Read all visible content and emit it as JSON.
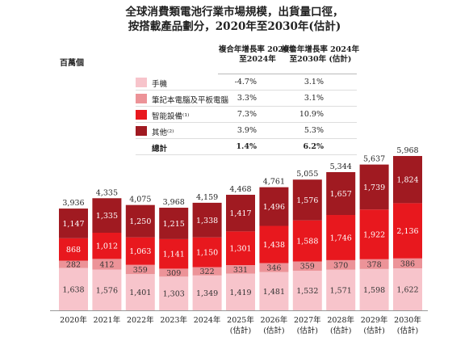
{
  "chart_data": {
    "type": "bar",
    "stacked": true,
    "title": "全球消費類電池行業市場規模，出貨量口徑，",
    "subtitle": "按搭載產品劃分，2020年至2030年(估計)",
    "unit_label": "百萬個",
    "categories": [
      "2020年",
      "2021年",
      "2022年",
      "2023年",
      "2024年",
      "2025年",
      "2026年",
      "2027年",
      "2028年",
      "2029年",
      "2030年"
    ],
    "category_notes": [
      "",
      "",
      "",
      "",
      "",
      "(估計)",
      "(估計)",
      "(估計)",
      "(估計)",
      "(估計)",
      "(估計)"
    ],
    "series": [
      {
        "name": "手機",
        "values": [
          1638,
          1576,
          1401,
          1303,
          1349,
          1419,
          1481,
          1532,
          1571,
          1598,
          1622
        ]
      },
      {
        "name": "筆記本電腦及平板電腦",
        "values": [
          282,
          412,
          359,
          309,
          322,
          331,
          346,
          359,
          370,
          378,
          386
        ]
      },
      {
        "name": "智能設備⁽¹⁾",
        "values": [
          868,
          1012,
          1063,
          1141,
          1150,
          1301,
          1438,
          1588,
          1746,
          1922,
          2136
        ]
      },
      {
        "name": "其他⁽²⁾",
        "values": [
          1147,
          1335,
          1250,
          1215,
          1338,
          1417,
          1496,
          1576,
          1657,
          1739,
          1824
        ]
      }
    ],
    "totals": [
      3936,
      4335,
      4075,
      3968,
      4159,
      4468,
      4761,
      5055,
      5344,
      5637,
      5968
    ],
    "ylim": [
      0,
      6200
    ],
    "cagr_table": {
      "col1_header": "複合年增長率 2020年至2024年",
      "col2_header": "複合年增長率 2024年至2030年 (估計)",
      "rows": [
        {
          "label": "手機",
          "col1": "-4.7%",
          "col2": "3.1%"
        },
        {
          "label": "筆記本電腦及平板電腦",
          "col1": "3.3%",
          "col2": "3.1%"
        },
        {
          "label": "智能設備⁽¹⁾",
          "col1": "7.3%",
          "col2": "10.9%"
        },
        {
          "label": "其他⁽²⁾",
          "col1": "3.9%",
          "col2": "5.3%"
        },
        {
          "label": "總計",
          "col1": "1.4%",
          "col2": "6.2%"
        }
      ]
    },
    "colors": {
      "手機": "#f7c4cb",
      "筆記本電腦及平板電腦": "#ec9398",
      "智能設備": "#e8181e",
      "其他": "#a01a21"
    },
    "legend_position": "top-left",
    "grid": false
  }
}
